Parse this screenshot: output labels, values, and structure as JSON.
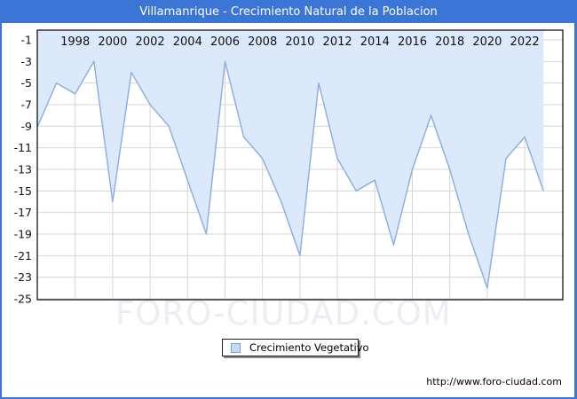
{
  "window": {
    "title": "Villamanrique - Crecimiento Natural de la Poblacion"
  },
  "legend": {
    "label": "Crecimiento Vegetativo"
  },
  "watermark_text": "FORO-CIUDAD.COM",
  "footer": {
    "url": "http://www.foro-ciudad.com"
  },
  "colors": {
    "frame_blue": "#3b76d6",
    "series_line": "#8db1e3",
    "series_fill": "#dbe9fb",
    "grid": "#d6d6d6",
    "plot_border": "#000000",
    "axis_text": "#111111",
    "watermark": "#ededf4",
    "legend_swatch_fill": "#c6dcf5",
    "legend_swatch_border": "#789fd6"
  },
  "chart_data": {
    "type": "area",
    "title": "Villamanrique - Crecimiento Natural de la Poblacion",
    "series_name": "Crecimiento Vegetativo",
    "x": [
      1996,
      1997,
      1998,
      1999,
      2000,
      2001,
      2002,
      2003,
      2004,
      2005,
      2006,
      2007,
      2008,
      2009,
      2010,
      2011,
      2012,
      2013,
      2014,
      2015,
      2016,
      2017,
      2018,
      2019,
      2020,
      2021,
      2022,
      2023
    ],
    "values": [
      -9,
      -5,
      -6,
      -3,
      -16,
      -4,
      -7,
      -9,
      -14,
      -19,
      -3,
      -10,
      -12,
      -16,
      -21,
      -5,
      -12,
      -15,
      -14,
      -20,
      -13,
      -8,
      -13,
      -19,
      -24,
      -12,
      -10,
      -15
    ],
    "xticks": [
      1998,
      2000,
      2002,
      2004,
      2006,
      2008,
      2010,
      2012,
      2014,
      2016,
      2018,
      2020,
      2022
    ],
    "yticks": [
      -1,
      -3,
      -5,
      -7,
      -9,
      -11,
      -13,
      -15,
      -17,
      -19,
      -21,
      -23,
      -25
    ],
    "ylim": [
      -25,
      -1
    ],
    "grid": "on",
    "legend_position": "bottom-center",
    "fill_direction": "above-line-to-top",
    "xlabel": "",
    "ylabel": ""
  }
}
